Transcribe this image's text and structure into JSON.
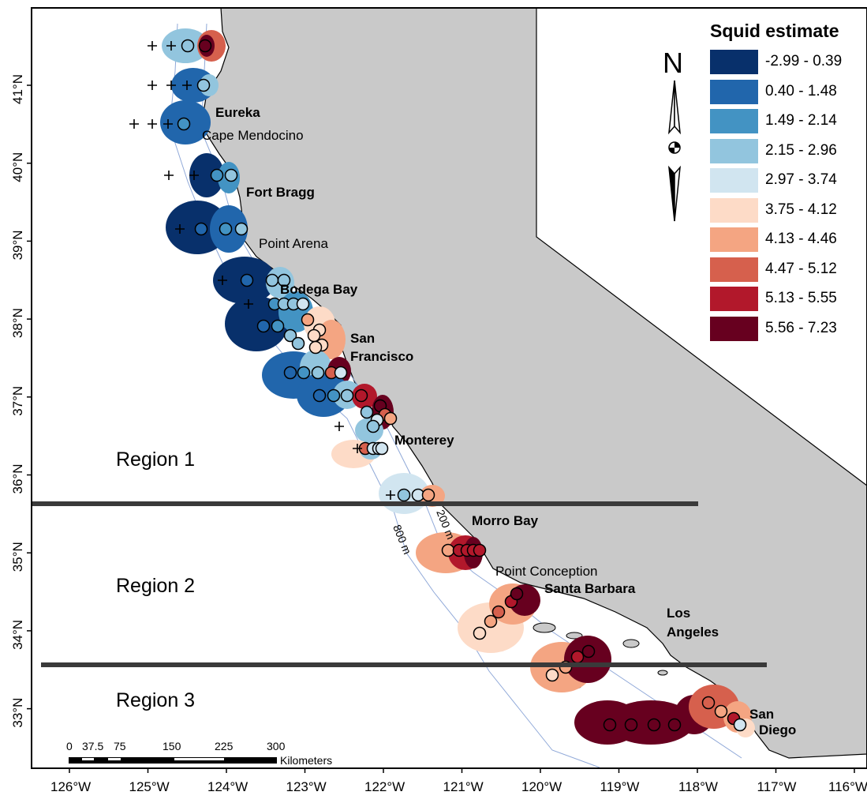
{
  "legend": {
    "title": "Squid estimate",
    "classes": [
      {
        "label": "-2.99 - 0.39",
        "color": "#08306b"
      },
      {
        "label": "0.40 - 1.48",
        "color": "#2166ac"
      },
      {
        "label": "1.49 - 2.14",
        "color": "#4393c3"
      },
      {
        "label": "2.15 - 2.96",
        "color": "#92c5de"
      },
      {
        "label": "2.97 - 3.74",
        "color": "#d1e5f0"
      },
      {
        "label": "3.75 - 4.12",
        "color": "#fddbc7"
      },
      {
        "label": "4.13 - 4.46",
        "color": "#f4a582"
      },
      {
        "label": "4.47 - 5.12",
        "color": "#d6604d"
      },
      {
        "label": "5.13 - 5.55",
        "color": "#b2182b"
      },
      {
        "label": "5.56 - 7.23",
        "color": "#67001f"
      }
    ]
  },
  "north_arrow": {
    "label": "N"
  },
  "axes": {
    "lat_labels": [
      "41°N",
      "40°N",
      "39°N",
      "38°N",
      "37°N",
      "36°N",
      "35°N",
      "34°N",
      "33°N"
    ],
    "lon_labels": [
      "126°W",
      "125°W",
      "124°W",
      "123°W",
      "122°W",
      "121°W",
      "120°W",
      "119°W",
      "118°W",
      "117°W",
      "116°W"
    ]
  },
  "places": {
    "bold": [
      "Eureka",
      "Fort Bragg",
      "Bodega Bay",
      "San",
      "Francisco",
      "Monterey",
      "Morro Bay",
      "Santa Barbara",
      "Los",
      "Angeles",
      "San",
      "Diego"
    ],
    "regular": [
      "Cape Mendocino",
      "Point Arena",
      "Point Conception"
    ]
  },
  "regions": [
    "Region 1",
    "Region 2",
    "Region 3"
  ],
  "isobaths": [
    "200 m",
    "800 m"
  ],
  "scale_bar": {
    "ticks": [
      "0",
      "37.5",
      "75",
      "150",
      "225",
      "300"
    ],
    "unit": "Kilometers"
  }
}
